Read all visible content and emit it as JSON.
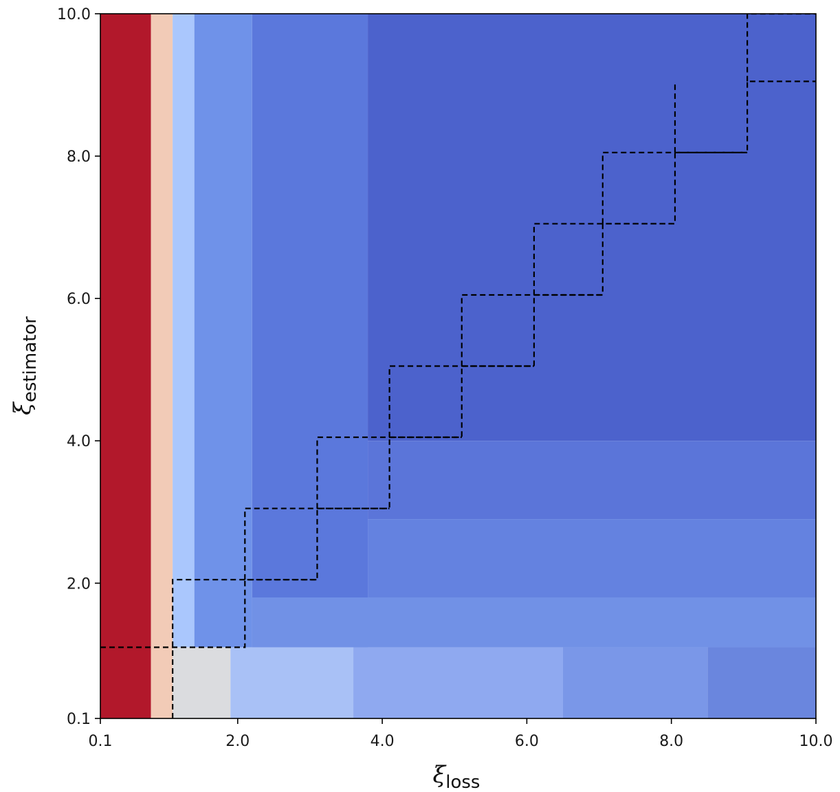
{
  "chart_data": {
    "type": "heatmap",
    "title": "",
    "xlabel": {
      "symbol": "ξ",
      "subscript": "loss"
    },
    "ylabel": {
      "symbol": "ξ",
      "subscript": "estimator"
    },
    "xlim": [
      0.1,
      10.0
    ],
    "ylim": [
      0.1,
      10.0
    ],
    "xticks": [
      0.1,
      2.0,
      4.0,
      6.0,
      8.0,
      10.0
    ],
    "xtick_labels": [
      "0.1",
      "2.0",
      "4.0",
      "6.0",
      "8.0",
      "10.0"
    ],
    "yticks": [
      0.1,
      2.0,
      4.0,
      6.0,
      8.0,
      10.0
    ],
    "ytick_labels": [
      "0.1",
      "2.0",
      "4.0",
      "6.0",
      "8.0",
      "10.0"
    ],
    "colormap": "coolwarm",
    "grid": false,
    "regions": [
      {
        "x": [
          0.1,
          0.8
        ],
        "y": [
          0.1,
          10.0
        ],
        "color": "#b2182b"
      },
      {
        "x": [
          0.8,
          1.1
        ],
        "y": [
          0.1,
          10.0
        ],
        "color": "#f2cbb7"
      },
      {
        "x": [
          1.1,
          1.4
        ],
        "y": [
          1.1,
          10.0
        ],
        "color": "#aac7fd"
      },
      {
        "x": [
          1.4,
          2.2
        ],
        "y": [
          1.1,
          10.0
        ],
        "color": "#6f92e9"
      },
      {
        "x": [
          2.2,
          3.8
        ],
        "y": [
          1.1,
          10.0
        ],
        "color": "#5b78dc"
      },
      {
        "x": [
          3.8,
          10.0
        ],
        "y": [
          4.0,
          10.0
        ],
        "color": "#4c62cc"
      },
      {
        "x": [
          3.8,
          10.0
        ],
        "y": [
          2.9,
          4.0
        ],
        "color": "#5b75d9"
      },
      {
        "x": [
          3.8,
          10.0
        ],
        "y": [
          1.8,
          2.9
        ],
        "color": "#6482e0"
      },
      {
        "x": [
          2.2,
          10.0
        ],
        "y": [
          1.1,
          1.8
        ],
        "color": "#7191e6"
      },
      {
        "x": [
          1.1,
          1.9
        ],
        "y": [
          0.1,
          1.1
        ],
        "color": "#dbdcdf"
      },
      {
        "x": [
          1.9,
          3.6
        ],
        "y": [
          0.1,
          1.1
        ],
        "color": "#a9c1f6"
      },
      {
        "x": [
          3.6,
          6.5
        ],
        "y": [
          0.1,
          1.1
        ],
        "color": "#8fa9f0"
      },
      {
        "x": [
          6.5,
          8.5
        ],
        "y": [
          0.1,
          1.1
        ],
        "color": "#7a97e8"
      },
      {
        "x": [
          8.5,
          10.0
        ],
        "y": [
          0.1,
          1.1
        ],
        "color": "#6a86de"
      }
    ],
    "staircase_line": {
      "style": "dashed",
      "color": "#000000",
      "points": [
        [
          0.1,
          1.1
        ],
        [
          2.1,
          1.1
        ],
        [
          2.1,
          2.05
        ],
        [
          3.1,
          2.05
        ],
        [
          3.1,
          3.05
        ],
        [
          4.1,
          3.05
        ],
        [
          4.1,
          4.05
        ],
        [
          5.1,
          4.05
        ],
        [
          5.1,
          5.05
        ],
        [
          6.1,
          5.05
        ],
        [
          6.1,
          6.05
        ],
        [
          7.05,
          6.05
        ],
        [
          7.05,
          7.05
        ],
        [
          8.05,
          7.05
        ],
        [
          8.05,
          8.05
        ],
        [
          9.05,
          8.05
        ],
        [
          9.05,
          9.05
        ],
        [
          10.0,
          9.05
        ]
      ],
      "cross_segments": [
        [
          [
            1.1,
            0.1
          ],
          [
            1.1,
            2.05
          ],
          [
            3.1,
            2.05
          ]
        ],
        [
          [
            2.1,
            2.05
          ],
          [
            2.1,
            3.05
          ],
          [
            4.1,
            3.05
          ]
        ],
        [
          [
            3.1,
            3.05
          ],
          [
            3.1,
            4.05
          ],
          [
            5.1,
            4.05
          ]
        ],
        [
          [
            4.1,
            4.05
          ],
          [
            4.1,
            5.05
          ],
          [
            6.1,
            5.05
          ]
        ],
        [
          [
            5.1,
            5.05
          ],
          [
            5.1,
            6.05
          ],
          [
            7.05,
            6.05
          ]
        ],
        [
          [
            6.1,
            6.05
          ],
          [
            6.1,
            7.05
          ],
          [
            8.05,
            7.05
          ]
        ],
        [
          [
            7.05,
            7.05
          ],
          [
            7.05,
            8.05
          ],
          [
            9.05,
            8.05
          ]
        ],
        [
          [
            8.05,
            8.05
          ],
          [
            8.05,
            9.05
          ]
        ],
        [
          [
            9.05,
            9.05
          ],
          [
            9.05,
            10.0
          ],
          [
            10.0,
            10.0
          ]
        ]
      ]
    }
  }
}
